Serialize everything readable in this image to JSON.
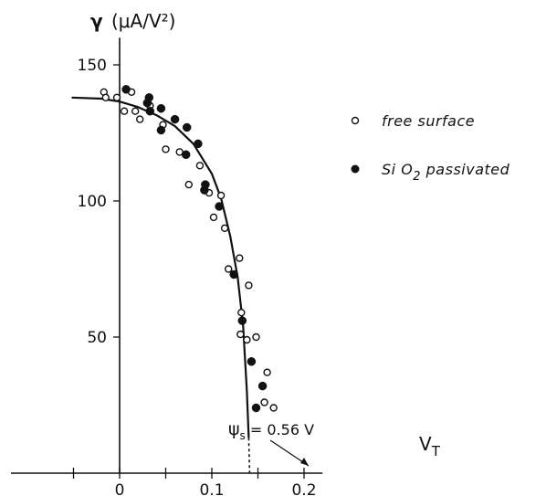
{
  "chart_data": {
    "type": "scatter",
    "title": "",
    "ylabel_symbol": "γ",
    "ylabel_units": "(μA/V²)",
    "xlabel": "V_T",
    "xlim": [
      -0.06,
      0.22
    ],
    "ylim": [
      0,
      160
    ],
    "x_ticks": [
      0,
      0.1,
      0.2
    ],
    "x_tick_labels": [
      "0",
      "0.1",
      "0.2"
    ],
    "y_ticks": [
      50,
      100,
      150
    ],
    "y_tick_labels": [
      "50",
      "100",
      "150"
    ],
    "grid": false,
    "legend_position": "right",
    "series": [
      {
        "name": "free surface",
        "marker": "open-circle",
        "points": [
          [
            -0.017,
            140
          ],
          [
            -0.015,
            138
          ],
          [
            -0.003,
            138
          ],
          [
            0.005,
            133
          ],
          [
            0.013,
            140
          ],
          [
            0.017,
            133
          ],
          [
            0.022,
            130
          ],
          [
            0.033,
            135
          ],
          [
            0.047,
            128
          ],
          [
            0.05,
            119
          ],
          [
            0.065,
            118
          ],
          [
            0.075,
            106
          ],
          [
            0.087,
            113
          ],
          [
            0.097,
            103
          ],
          [
            0.102,
            94
          ],
          [
            0.11,
            102
          ],
          [
            0.114,
            90
          ],
          [
            0.118,
            75
          ],
          [
            0.13,
            79
          ],
          [
            0.132,
            59
          ],
          [
            0.131,
            51
          ],
          [
            0.14,
            69
          ],
          [
            0.138,
            49
          ],
          [
            0.148,
            50
          ],
          [
            0.157,
            26
          ],
          [
            0.16,
            37
          ],
          [
            0.167,
            24
          ]
        ]
      },
      {
        "name": "Si O₂ passivated",
        "marker": "filled-circle",
        "points": [
          [
            0.007,
            141
          ],
          [
            0.03,
            136
          ],
          [
            0.032,
            138
          ],
          [
            0.033,
            133
          ],
          [
            0.045,
            134
          ],
          [
            0.045,
            126
          ],
          [
            0.06,
            130
          ],
          [
            0.072,
            117
          ],
          [
            0.073,
            127
          ],
          [
            0.085,
            121
          ],
          [
            0.092,
            104
          ],
          [
            0.093,
            106
          ],
          [
            0.108,
            98
          ],
          [
            0.124,
            73
          ],
          [
            0.133,
            56
          ],
          [
            0.143,
            41
          ],
          [
            0.148,
            24
          ],
          [
            0.155,
            32
          ]
        ]
      },
      {
        "name": "fit",
        "kind": "line",
        "points": [
          [
            -0.052,
            138
          ],
          [
            -0.02,
            137.6
          ],
          [
            0,
            136.5
          ],
          [
            0.02,
            134.5
          ],
          [
            0.04,
            131.5
          ],
          [
            0.06,
            127.5
          ],
          [
            0.08,
            121
          ],
          [
            0.1,
            110
          ],
          [
            0.11,
            101
          ],
          [
            0.12,
            87
          ],
          [
            0.128,
            72
          ],
          [
            0.134,
            54
          ],
          [
            0.138,
            30
          ],
          [
            0.14,
            13
          ]
        ],
        "dashed_extension": [
          [
            0.14,
            13
          ],
          [
            0.141,
            0
          ]
        ]
      }
    ],
    "legend": [
      {
        "label": "free surface",
        "marker": "open-circle"
      },
      {
        "label_main": "Si O",
        "label_sub": "2",
        "label_tail": " passivated",
        "marker": "filled-circle"
      }
    ],
    "annotation": {
      "text_symbol": "ψ",
      "text_sub": "s",
      "text_value": " = 0.56 V",
      "arrow_to": [
        0.14,
        0
      ]
    }
  }
}
